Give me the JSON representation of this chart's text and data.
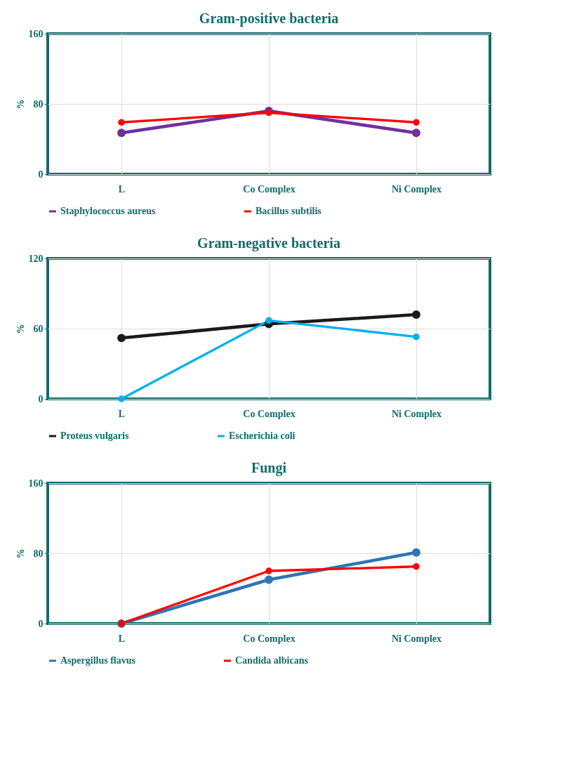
{
  "chart_data": [
    {
      "type": "line",
      "title": "Gram-positive bacteria",
      "ylabel": "%",
      "categories": [
        "L",
        "Co Complex",
        "Ni Complex"
      ],
      "ylim": [
        0,
        160
      ],
      "yticks": [
        0,
        80,
        160
      ],
      "grid": true,
      "legend": "bottom",
      "marker": "circle",
      "line_style": "solid",
      "series": [
        {
          "name": "Staphylococcus aureus",
          "color": "#7030a0",
          "values": [
            47,
            72,
            47
          ]
        },
        {
          "name": "Bacillus subtilis",
          "color": "#ff0000",
          "values": [
            59,
            70,
            59
          ]
        }
      ]
    },
    {
      "type": "line",
      "title": "Gram-negative bacteria",
      "ylabel": "%",
      "categories": [
        "L",
        "Co Complex",
        "Ni Complex"
      ],
      "ylim": [
        0,
        120
      ],
      "yticks": [
        0,
        60,
        120
      ],
      "grid": true,
      "legend": "bottom",
      "marker": "circle",
      "line_style": "solid",
      "series": [
        {
          "name": "Proteus vulgaris",
          "color": "#1a1a1a",
          "values": [
            52,
            64,
            72
          ]
        },
        {
          "name": "Escherichia coli",
          "color": "#00b0f0",
          "values": [
            0,
            67,
            53
          ]
        }
      ]
    },
    {
      "type": "line",
      "title": "Fungi",
      "ylabel": "%",
      "categories": [
        "L",
        "Co Complex",
        "Ni Complex"
      ],
      "ylim": [
        0,
        160
      ],
      "yticks": [
        0,
        80,
        160
      ],
      "grid": true,
      "legend": "bottom",
      "marker": "circle",
      "line_style": "solid",
      "series": [
        {
          "name": "Aspergillus flavus",
          "color": "#2e75b6",
          "values": [
            0,
            50,
            81
          ]
        },
        {
          "name": "Candida albicans",
          "color": "#ff0000",
          "values": [
            0,
            60,
            65
          ]
        }
      ]
    }
  ]
}
